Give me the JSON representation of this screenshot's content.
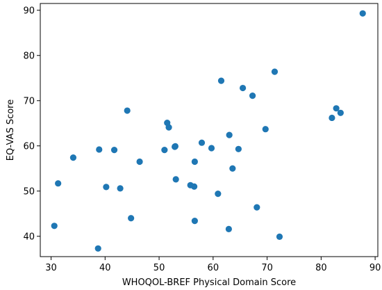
{
  "chart_data": {
    "type": "scatter",
    "title": "",
    "xlabel": "WHOQOL-BREF Physical Domain Score",
    "ylabel": "EQ-VAS Score",
    "xlim": [
      28.0,
      90.5
    ],
    "ylim": [
      35.5,
      91.5
    ],
    "xticks": [
      30,
      40,
      50,
      60,
      70,
      80,
      90
    ],
    "yticks": [
      40,
      50,
      60,
      70,
      80,
      90
    ],
    "grid": false,
    "point_color": "#1f77b4",
    "points": [
      {
        "x": 30.6,
        "y": 42.3
      },
      {
        "x": 31.3,
        "y": 51.7
      },
      {
        "x": 34.1,
        "y": 57.4
      },
      {
        "x": 38.7,
        "y": 37.3
      },
      {
        "x": 38.9,
        "y": 59.2
      },
      {
        "x": 40.2,
        "y": 50.9
      },
      {
        "x": 41.7,
        "y": 59.1
      },
      {
        "x": 42.8,
        "y": 50.6
      },
      {
        "x": 44.1,
        "y": 67.8
      },
      {
        "x": 44.8,
        "y": 44.0
      },
      {
        "x": 46.4,
        "y": 56.5
      },
      {
        "x": 51.0,
        "y": 59.1
      },
      {
        "x": 51.5,
        "y": 65.1
      },
      {
        "x": 51.8,
        "y": 64.1
      },
      {
        "x": 52.9,
        "y": 59.8
      },
      {
        "x": 53.0,
        "y": 59.9
      },
      {
        "x": 53.1,
        "y": 52.6
      },
      {
        "x": 55.8,
        "y": 51.3
      },
      {
        "x": 56.5,
        "y": 51.0
      },
      {
        "x": 56.6,
        "y": 43.4
      },
      {
        "x": 56.6,
        "y": 56.5
      },
      {
        "x": 57.9,
        "y": 60.7
      },
      {
        "x": 59.7,
        "y": 59.5
      },
      {
        "x": 60.9,
        "y": 49.4
      },
      {
        "x": 61.5,
        "y": 74.4
      },
      {
        "x": 62.9,
        "y": 41.6
      },
      {
        "x": 63.0,
        "y": 62.4
      },
      {
        "x": 63.6,
        "y": 55.0
      },
      {
        "x": 64.7,
        "y": 59.3
      },
      {
        "x": 65.5,
        "y": 72.8
      },
      {
        "x": 67.3,
        "y": 71.1
      },
      {
        "x": 68.1,
        "y": 46.4
      },
      {
        "x": 69.7,
        "y": 63.7
      },
      {
        "x": 71.4,
        "y": 76.4
      },
      {
        "x": 72.3,
        "y": 39.9
      },
      {
        "x": 82.0,
        "y": 66.2
      },
      {
        "x": 82.8,
        "y": 68.3
      },
      {
        "x": 83.6,
        "y": 67.3
      },
      {
        "x": 87.7,
        "y": 89.3
      }
    ]
  }
}
